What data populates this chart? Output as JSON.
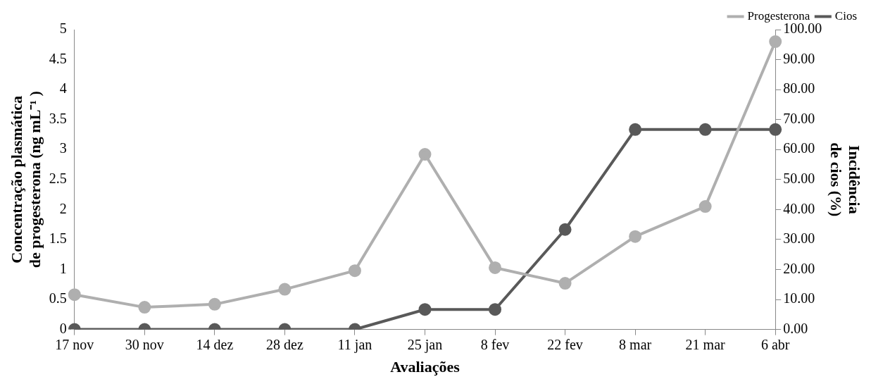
{
  "chart_data": {
    "type": "line",
    "xlabel": "Avaliações",
    "ylabel": "Concentração plasmática de progesterona (ng mL⁻¹ )",
    "y2label": "Incidência de cios (%)",
    "categories": [
      "17 nov",
      "30 nov",
      "14 dez",
      "28 dez",
      "11 jan",
      "25 jan",
      "8 fev",
      "22 fev",
      "8 mar",
      "21 mar",
      "6 abr"
    ],
    "series": [
      {
        "name": "Progesterona",
        "color": "#afafaf",
        "values": [
          0.58,
          0.37,
          0.42,
          0.67,
          0.98,
          2.92,
          1.03,
          0.77,
          1.55,
          2.05,
          4.8
        ]
      },
      {
        "name": "Cios",
        "color": "#595959",
        "axis": "y2",
        "values": [
          0,
          0,
          0,
          0,
          0,
          6.67,
          6.67,
          33.33,
          66.67,
          66.67,
          66.67
        ]
      }
    ],
    "ylim": [
      0,
      5
    ],
    "yticks": [
      0,
      0.5,
      1,
      1.5,
      2,
      2.5,
      3,
      3.5,
      4,
      4.5,
      5
    ],
    "y2lim": [
      0,
      100
    ],
    "y2ticks": [
      {
        "value": 0,
        "label": "0.00"
      },
      {
        "value": 10,
        "label": "10.00"
      },
      {
        "value": 20,
        "label": "20.00"
      },
      {
        "value": 30,
        "label": "30.00"
      },
      {
        "value": 40,
        "label": "40.00"
      },
      {
        "value": 50,
        "label": "50.00"
      },
      {
        "value": 60,
        "label": "60.00"
      },
      {
        "value": 70,
        "label": "70.00"
      },
      {
        "value": 80,
        "label": "80.00"
      },
      {
        "value": 90,
        "label": "90.00"
      },
      {
        "value": 100,
        "label": "100.00"
      }
    ],
    "legend": "top right",
    "marker": "circle",
    "line_style": "solid",
    "grid": false
  }
}
